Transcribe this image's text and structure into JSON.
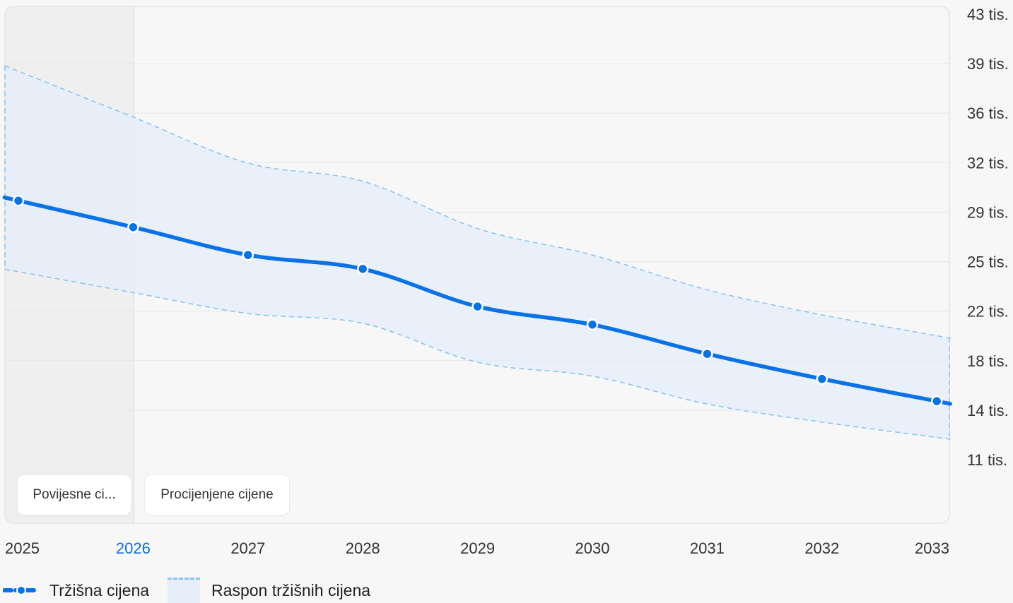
{
  "chart_data": {
    "type": "line",
    "x": [
      "2025",
      "2026",
      "2027",
      "2028",
      "2029",
      "2030",
      "2031",
      "2032",
      "2033"
    ],
    "highlighted_x": "2026",
    "y_ticks": [
      "43 tis.",
      "39 tis.",
      "36 tis.",
      "32 tis.",
      "29 tis.",
      "25 tis.",
      "22 tis.",
      "18 tis.",
      "14 tis.",
      "11 tis."
    ],
    "y_axis_side": "right",
    "ylim": [
      7500,
      43000
    ],
    "grid": true,
    "series": [
      {
        "name": "Tržišna cijena",
        "kind": "line",
        "values": [
          29600,
          27700,
          25700,
          24700,
          22000,
          20700,
          18600,
          16800,
          15200
        ]
      },
      {
        "name": "Raspon tržišnih cijena",
        "kind": "range",
        "upper": [
          35600,
          32300,
          31000,
          27600,
          25700,
          23200,
          21400,
          19900
        ],
        "lower": [
          23000,
          21500,
          20800,
          18000,
          17000,
          15000,
          13700,
          12600
        ]
      }
    ],
    "periods": [
      {
        "label": "Povijesne ci...",
        "from": "2025",
        "to": "2026"
      },
      {
        "label": "Procijenjene cijene",
        "from": "2026",
        "to": "2033"
      }
    ],
    "legend_position": "bottom-left"
  },
  "colors": {
    "line": "#0a72e8",
    "range_fill": "#e6eefa",
    "range_edge": "#8cc4f5",
    "historic_shade": "#e9e9e9",
    "grid": "#e6e6e6",
    "highlight_tick": "#0a72e8",
    "tick_text": "#333333"
  },
  "legend": {
    "line_label": "Tržišna cijena",
    "range_label": "Raspon tržišnih cijena"
  }
}
